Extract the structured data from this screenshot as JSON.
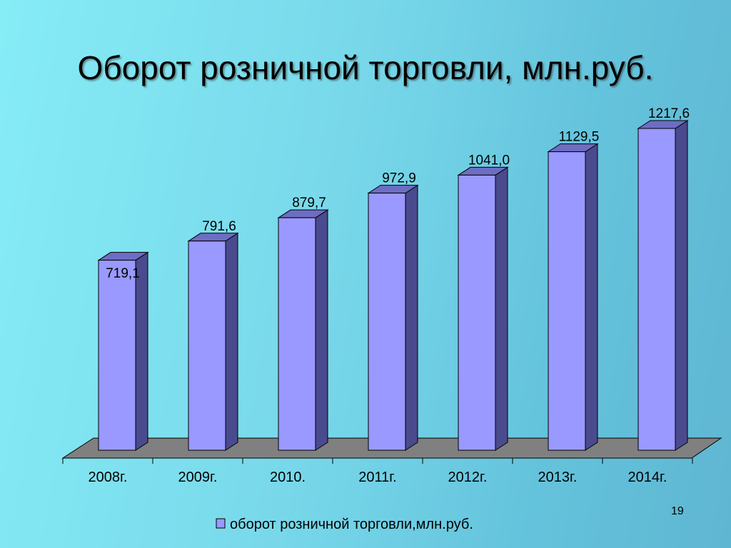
{
  "title": "Оборот розничной торговли, млн.руб.",
  "page_number": "19",
  "chart_data": {
    "type": "bar",
    "categories": [
      "2008г.",
      "2009г.",
      "2010.",
      "2011г.",
      "2012г.",
      "2013г.",
      "2014г."
    ],
    "series": [
      {
        "name": "оборот розничной торговли,млн.руб.",
        "values": [
          719.1,
          791.6,
          879.7,
          972.9,
          1041.0,
          1129.5,
          1217.6
        ],
        "value_labels": [
          "719,1",
          "791,6",
          "879,7",
          "972,9",
          "1041,0",
          "1129,5",
          "1217,6"
        ]
      }
    ],
    "title": "Оборот розничной торговли, млн.руб.",
    "xlabel": "",
    "ylabel": "",
    "legend_position": "bottom",
    "grid": false,
    "three_d": true,
    "colors": {
      "bar_front": "#9999ff",
      "bar_side": "#4a4a8e",
      "bar_top": "#6d6dc4",
      "floor": "#808080"
    }
  }
}
